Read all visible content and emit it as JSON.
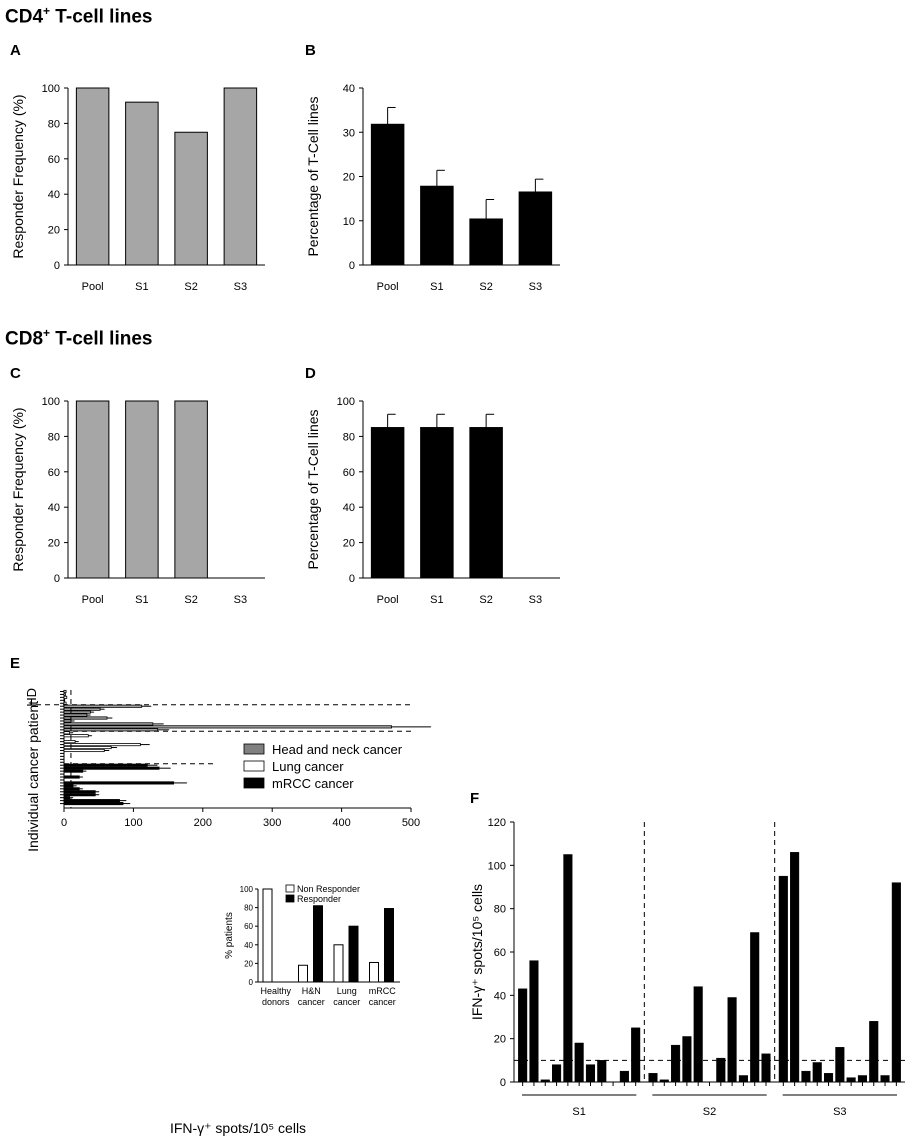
{
  "sections": {
    "cd4": {
      "pre": "CD4",
      "sup": "+",
      "post": " T-cell lines"
    },
    "cd8": {
      "pre": "CD8",
      "sup": "+",
      "post": " T-cell lines"
    }
  },
  "colors": {
    "gray": "#a6a6a6",
    "black": "#000000",
    "white": "#ffffff",
    "darkgray": "#808080"
  },
  "chart_data": [
    {
      "panel": "A",
      "type": "bar",
      "categories": [
        "Pool",
        "S1",
        "S2",
        "S3"
      ],
      "values": [
        100,
        92,
        75,
        100
      ],
      "ylabel": "Responder Frequency (%)",
      "ylim": [
        0,
        100
      ],
      "yticks": [
        "0",
        "20",
        "40",
        "60",
        "80",
        "100"
      ],
      "color": "#a6a6a6"
    },
    {
      "panel": "B",
      "type": "bar",
      "categories": [
        "Pool",
        "S1",
        "S2",
        "S3"
      ],
      "values": [
        31.8,
        17.8,
        10.4,
        16.5
      ],
      "errors": [
        3.8,
        3.6,
        4.4,
        2.9
      ],
      "ylabel": "Percentage of T-Cell lines",
      "ylim": [
        0,
        40
      ],
      "yticks": [
        "0",
        "10",
        "20",
        "30",
        "40"
      ],
      "color": "#000000"
    },
    {
      "panel": "C",
      "type": "bar",
      "categories": [
        "Pool",
        "S1",
        "S2",
        "S3"
      ],
      "values": [
        100,
        100,
        100,
        0
      ],
      "ylabel": "Responder Frequency (%)",
      "ylim": [
        0,
        100
      ],
      "yticks": [
        "0",
        "20",
        "40",
        "60",
        "80",
        "100"
      ],
      "color": "#a6a6a6"
    },
    {
      "panel": "D",
      "type": "bar",
      "categories": [
        "Pool",
        "S1",
        "S2",
        "S3"
      ],
      "values": [
        85,
        85,
        85,
        0
      ],
      "errors": [
        7.5,
        7.5,
        7.5,
        0
      ],
      "ylabel": "Percentage of T-Cell lines",
      "ylim": [
        0,
        100
      ],
      "yticks": [
        "0",
        "20",
        "40",
        "60",
        "80",
        "100"
      ],
      "color": "#000000"
    },
    {
      "panel": "E",
      "type": "bar",
      "orientation": "horizontal",
      "xlabel": "IFN-γ⁺ spots/10⁵ cells",
      "ylabel": "Individual cancer patient",
      "group_label": "HD",
      "xlim": [
        0,
        500
      ],
      "xticks": [
        "0",
        "100",
        "200",
        "300",
        "400",
        "500"
      ],
      "threshold": 10,
      "legend": [
        "Head and neck cancer",
        "Lung cancer",
        "mRCC cancer"
      ],
      "series": [
        {
          "name": "Healthy donors",
          "values": [
            3,
            2,
            4,
            1,
            3
          ]
        },
        {
          "name": "Head and neck cancer",
          "values": [
            112,
            52,
            38,
            33,
            62,
            10,
            128,
            472,
            135
          ]
        },
        {
          "name": "Lung cancer",
          "values": [
            8,
            35,
            0,
            16,
            110,
            68,
            58,
            0,
            0,
            0,
            0
          ]
        },
        {
          "name": "mRCC cancer",
          "values": [
            120,
            137,
            27,
            0,
            22,
            0,
            158,
            13,
            22,
            45,
            45,
            8,
            80,
            85
          ]
        }
      ],
      "inset": {
        "ylabel": "% patients",
        "ylim": [
          0,
          100
        ],
        "yticks": [
          "0",
          "20",
          "40",
          "60",
          "80",
          "100"
        ],
        "legend": [
          "Non Responder",
          "Responder"
        ],
        "groups": [
          {
            "line1": "Healthy",
            "line2": "donors",
            "non_responder": 100,
            "responder": 0
          },
          {
            "line1": "H&N",
            "line2": "cancer",
            "non_responder": 18,
            "responder": 82
          },
          {
            "line1": "Lung",
            "line2": "cancer",
            "non_responder": 40,
            "responder": 60
          },
          {
            "line1": "mRCC",
            "line2": "cancer",
            "non_responder": 21,
            "responder": 79
          }
        ]
      }
    },
    {
      "panel": "F",
      "type": "bar",
      "ylabel": "IFN-γ⁺ spots/10⁵ cells",
      "ylim": [
        0,
        120
      ],
      "yticks": [
        "0",
        "20",
        "40",
        "60",
        "80",
        "100",
        "120"
      ],
      "threshold": 10,
      "groups": [
        {
          "name": "S1",
          "values": [
            43,
            56,
            1,
            8,
            105,
            18,
            8,
            10,
            0,
            5,
            25
          ]
        },
        {
          "name": "S2",
          "values": [
            4,
            1,
            17,
            21,
            44,
            0,
            11,
            39,
            3,
            69,
            13
          ]
        },
        {
          "name": "S3",
          "values": [
            95,
            106,
            5,
            9,
            4,
            16,
            2,
            3,
            28,
            3,
            92
          ]
        }
      ]
    }
  ]
}
